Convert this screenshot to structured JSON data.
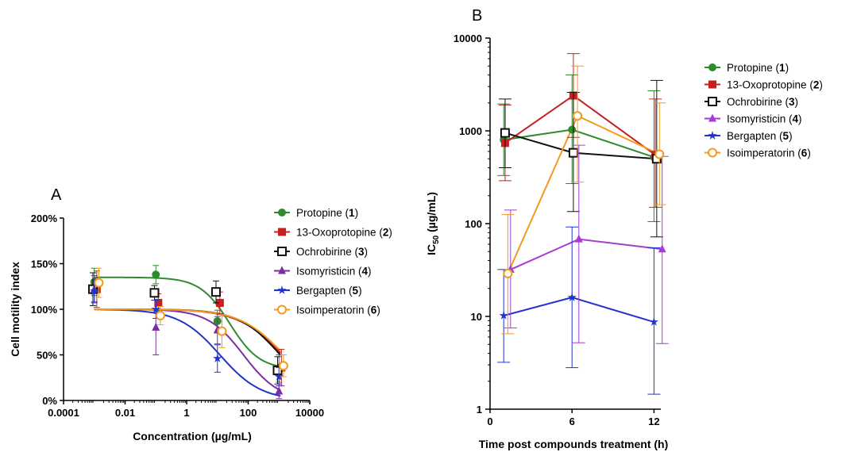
{
  "chart_data": [
    {
      "panel": "A",
      "type": "scatter",
      "xlabel": "Concentration (µg/mL)",
      "ylabel": "Cell motility index",
      "xscale": "log",
      "xlim": [
        0.0001,
        10000
      ],
      "ylim": [
        0,
        200
      ],
      "x_ticks": [
        "0.0001",
        "0.01",
        "1",
        "100",
        "10000"
      ],
      "y_ticks": [
        "0%",
        "50%",
        "100%",
        "150%",
        "200%"
      ],
      "legend_position": "right",
      "series": [
        {
          "name": "Protopine (1)",
          "label": "Protopine",
          "num": "1",
          "color": "#2e8b2e",
          "marker": "circle",
          "x": [
            0.001,
            0.1,
            10,
            1000
          ],
          "y": [
            130,
            138,
            87,
            35
          ],
          "err": [
            15,
            10,
            12,
            15
          ],
          "fit": {
            "bottom": 34,
            "top": 135,
            "ec50": 25,
            "hill": 0.9
          }
        },
        {
          "name": "13-Oxoprotopine (2)",
          "label": "13-Oxoprotopine",
          "num": "2",
          "color": "#c62020",
          "marker": "square",
          "x": [
            0.0012,
            0.12,
            12,
            1200
          ],
          "y": [
            122,
            107,
            107,
            36
          ],
          "err": [
            20,
            10,
            12,
            20
          ],
          "fit": {
            "bottom": 0,
            "top": 100,
            "ec50": 1300,
            "hill": 0.6
          }
        },
        {
          "name": "Ochrobirine (3)",
          "label": "Ochrobirine",
          "num": "3",
          "color": "#111111",
          "marker": "square-open",
          "x": [
            0.0009,
            0.09,
            9,
            900
          ],
          "y": [
            122,
            118,
            119,
            33
          ],
          "err": [
            18,
            8,
            12,
            15
          ],
          "fit": {
            "bottom": 0,
            "top": 100,
            "ec50": 1100,
            "hill": 0.65
          }
        },
        {
          "name": "Isomyristicin (4)",
          "label": "Isomyristicin",
          "num": "4",
          "color": "#7b2fa3",
          "marker": "triangle",
          "x": [
            0.001,
            0.1,
            10,
            1000
          ],
          "y": [
            122,
            80,
            77,
            10
          ],
          "err": [
            15,
            30,
            15,
            8
          ],
          "fit": {
            "bottom": 0,
            "top": 100,
            "ec50": 70,
            "hill": 0.75
          }
        },
        {
          "name": "Bergapten (5)",
          "label": "Bergapten",
          "num": "5",
          "color": "#2233cc",
          "marker": "star",
          "x": [
            0.001,
            0.1,
            10,
            1000
          ],
          "y": [
            120,
            100,
            46,
            26
          ],
          "err": [
            12,
            10,
            15,
            10
          ],
          "fit": {
            "bottom": 0,
            "top": 100,
            "ec50": 12,
            "hill": 0.65
          }
        },
        {
          "name": "Isoimperatorin (6)",
          "label": "Isoimperatorin",
          "num": "6",
          "color": "#f39a1d",
          "marker": "circle-open",
          "x": [
            0.0014,
            0.14,
            14,
            1400
          ],
          "y": [
            129,
            93,
            76,
            38
          ],
          "err": [
            16,
            10,
            18,
            12
          ],
          "fit": {
            "bottom": 0,
            "top": 100,
            "ec50": 1500,
            "hill": 0.6
          }
        }
      ]
    },
    {
      "panel": "B",
      "type": "line",
      "xlabel": "Time post compounds treatment (h)",
      "ylabel_main": "IC",
      "ylabel_sub": "50",
      "ylabel_rest": " (µg/mL)",
      "yscale": "log",
      "xlim": [
        0,
        12.5
      ],
      "ylim": [
        1,
        10000
      ],
      "x_ticks": [
        "0",
        "6",
        "12"
      ],
      "y_ticks": [
        "1",
        "10",
        "100",
        "1000",
        "10000"
      ],
      "legend_position": "top-right",
      "series": [
        {
          "name": "Protopine (1)",
          "label": "Protopine",
          "num": "1",
          "color": "#2e8b2e",
          "marker": "circle",
          "x": [
            1,
            6,
            12
          ],
          "y": [
            800,
            1030,
            520
          ],
          "err_lo": [
            330,
            270,
            105
          ],
          "err_hi": [
            1950,
            4000,
            2700
          ]
        },
        {
          "name": "13-Oxoprotopine (2)",
          "label": "13-Oxoprotopine",
          "num": "2",
          "color": "#c62020",
          "marker": "square",
          "x": [
            1.1,
            6.1,
            12.1
          ],
          "y": [
            740,
            2400,
            550
          ],
          "err_lo": [
            290,
            850,
            150
          ],
          "err_hi": [
            1900,
            6800,
            2200
          ]
        },
        {
          "name": "Ochrobirine (3)",
          "label": "Ochrobirine",
          "num": "3",
          "color": "#111111",
          "marker": "square-open",
          "x": [
            1.1,
            6.1,
            12.2
          ],
          "y": [
            950,
            580,
            500
          ],
          "err_lo": [
            400,
            135,
            72
          ],
          "err_hi": [
            2200,
            2600,
            3500
          ]
        },
        {
          "name": "Isomyristicin (4)",
          "label": "Isomyristicin",
          "num": "4",
          "color": "#a83bd1",
          "marker": "triangle",
          "x": [
            1.5,
            6.5,
            12.6
          ],
          "y": [
            32,
            68,
            53
          ],
          "err_lo": [
            7.5,
            5.2,
            5.1
          ],
          "err_hi": [
            140,
            700,
            530
          ]
        },
        {
          "name": "Bergapten (5)",
          "label": "Bergapten",
          "num": "5",
          "color": "#2233cc",
          "marker": "star",
          "x": [
            1,
            6,
            12
          ],
          "y": [
            10.2,
            16,
            8.7
          ],
          "err_lo": [
            3.2,
            2.8,
            1.45
          ],
          "err_hi": [
            32,
            92,
            55
          ]
        },
        {
          "name": "Isoimperatorin (6)",
          "label": "Isoimperatorin",
          "num": "6",
          "color": "#f39a1d",
          "marker": "circle-open",
          "x": [
            1.3,
            6.4,
            12.4
          ],
          "y": [
            29,
            1450,
            560
          ],
          "err_lo": [
            6.5,
            280,
            160
          ],
          "err_hi": [
            125,
            5000,
            2000
          ]
        }
      ]
    }
  ]
}
